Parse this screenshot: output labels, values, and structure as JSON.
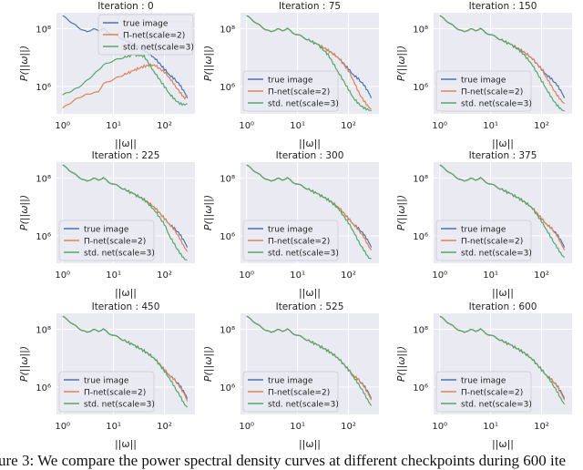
{
  "colors": {
    "true": "#4C72B0",
    "pinet": "#DD8452",
    "std": "#55A868",
    "axes_bg": "#EAEAF2",
    "grid": "#FFFFFF"
  },
  "caption": "ure 3: We compare the power spectral density curves at different checkpoints during 600 ite",
  "chart_data": {
    "type": "line",
    "layout": "3x3 grid",
    "xscale": "log",
    "yscale": "log",
    "xlabel": "||ω||",
    "ylabel": "P(||ω||)",
    "xlim_log10": [
      -0.12,
      2.6
    ],
    "ylim_log10": [
      5.05,
      8.55
    ],
    "x_ticks": [
      {
        "value": 1,
        "label": "10⁰"
      },
      {
        "value": 10,
        "label": "10¹"
      },
      {
        "value": 100,
        "label": "10²"
      }
    ],
    "y_ticks": [
      {
        "value": 1000000,
        "label": "10⁶"
      },
      {
        "value": 100000000,
        "label": "10⁸"
      }
    ],
    "grid": true,
    "legend_labels": [
      "true image",
      "Π-net(scale=2)",
      "std. net(scale=3)"
    ],
    "x": [
      1,
      2,
      3,
      4,
      5,
      6.3,
      7.9,
      10,
      15.8,
      25,
      40,
      63,
      100,
      126,
      158,
      200,
      251,
      282
    ],
    "panels": [
      {
        "title": "Iteration : 0",
        "legend": "upper-right",
        "true_log10": [
          8.45,
          8.05,
          7.88,
          8.0,
          7.92,
          8.02,
          7.85,
          7.8,
          7.62,
          7.45,
          7.25,
          7.0,
          6.6,
          6.4,
          6.25,
          6.05,
          5.8,
          5.6
        ],
        "pinet_log10": [
          5.25,
          5.6,
          5.72,
          5.78,
          5.8,
          6.1,
          6.15,
          6.25,
          6.4,
          6.55,
          6.7,
          6.75,
          6.5,
          6.3,
          6.05,
          5.8,
          5.6,
          5.7
        ],
        "std_log10": [
          5.7,
          5.95,
          6.2,
          6.4,
          6.55,
          6.75,
          6.8,
          6.9,
          7.0,
          7.1,
          7.05,
          6.5,
          6.0,
          5.75,
          5.55,
          5.4,
          5.38,
          5.4
        ]
      },
      {
        "title": "Iteration : 75",
        "legend": "lower-left",
        "true_log10": [
          8.45,
          8.05,
          7.88,
          8.0,
          7.92,
          8.02,
          7.85,
          7.8,
          7.62,
          7.45,
          7.25,
          7.0,
          6.6,
          6.4,
          6.25,
          6.05,
          5.8,
          5.6
        ],
        "pinet_log10": [
          8.45,
          8.05,
          7.88,
          8.0,
          7.92,
          8.02,
          7.85,
          7.8,
          7.62,
          7.45,
          7.25,
          7.0,
          6.55,
          6.2,
          5.8,
          5.5,
          5.3,
          5.2
        ],
        "std_log10": [
          8.45,
          8.05,
          7.88,
          8.0,
          7.92,
          8.02,
          7.85,
          7.8,
          7.62,
          7.45,
          7.1,
          6.5,
          5.9,
          5.6,
          5.4,
          5.25,
          5.2,
          5.15
        ]
      },
      {
        "title": "Iteration : 150",
        "legend": "lower-left",
        "true_log10": [
          8.45,
          8.05,
          7.88,
          8.0,
          7.92,
          8.02,
          7.85,
          7.8,
          7.62,
          7.45,
          7.25,
          7.0,
          6.6,
          6.4,
          6.25,
          6.05,
          5.8,
          5.6
        ],
        "pinet_log10": [
          8.45,
          8.05,
          7.88,
          8.0,
          7.92,
          8.02,
          7.85,
          7.8,
          7.62,
          7.45,
          7.25,
          7.0,
          6.6,
          6.3,
          6.0,
          5.7,
          5.5,
          5.4
        ],
        "std_log10": [
          8.45,
          8.05,
          7.88,
          8.0,
          7.92,
          8.02,
          7.85,
          7.8,
          7.62,
          7.45,
          7.2,
          6.8,
          6.2,
          5.9,
          5.6,
          5.35,
          5.2,
          5.15
        ]
      },
      {
        "title": "Iteration : 225",
        "legend": "lower-left",
        "true_log10": [
          8.45,
          8.05,
          7.88,
          8.0,
          7.92,
          8.02,
          7.85,
          7.8,
          7.62,
          7.45,
          7.25,
          7.0,
          6.6,
          6.4,
          6.25,
          6.05,
          5.8,
          5.6
        ],
        "pinet_log10": [
          8.45,
          8.05,
          7.88,
          8.0,
          7.92,
          8.02,
          7.85,
          7.8,
          7.62,
          7.45,
          7.25,
          7.0,
          6.6,
          6.4,
          6.2,
          5.9,
          5.6,
          5.45
        ],
        "std_log10": [
          8.45,
          8.05,
          7.88,
          8.0,
          7.92,
          8.02,
          7.85,
          7.8,
          7.62,
          7.45,
          7.25,
          6.9,
          6.4,
          6.0,
          5.7,
          5.4,
          5.2,
          5.15
        ]
      },
      {
        "title": "Iteration : 300",
        "legend": "lower-left",
        "true_log10": [
          8.45,
          8.05,
          7.88,
          8.0,
          7.92,
          8.02,
          7.85,
          7.8,
          7.62,
          7.45,
          7.25,
          7.0,
          6.6,
          6.4,
          6.25,
          6.05,
          5.8,
          5.6
        ],
        "pinet_log10": [
          8.45,
          8.05,
          7.88,
          8.0,
          7.92,
          8.02,
          7.85,
          7.8,
          7.62,
          7.45,
          7.25,
          7.0,
          6.6,
          6.4,
          6.2,
          5.95,
          5.65,
          5.5
        ],
        "std_log10": [
          8.45,
          8.05,
          7.88,
          8.0,
          7.92,
          8.02,
          7.85,
          7.8,
          7.62,
          7.45,
          7.25,
          6.95,
          6.45,
          6.15,
          5.8,
          5.5,
          5.25,
          5.2
        ]
      },
      {
        "title": "Iteration : 375",
        "legend": "lower-left",
        "true_log10": [
          8.45,
          8.05,
          7.88,
          8.0,
          7.92,
          8.02,
          7.85,
          7.8,
          7.62,
          7.45,
          7.25,
          7.0,
          6.6,
          6.4,
          6.25,
          6.05,
          5.8,
          5.6
        ],
        "pinet_log10": [
          8.45,
          8.05,
          7.88,
          8.0,
          7.92,
          8.02,
          7.85,
          7.8,
          7.62,
          7.45,
          7.25,
          7.0,
          6.6,
          6.4,
          6.25,
          6.0,
          5.7,
          5.5
        ],
        "std_log10": [
          8.45,
          8.05,
          7.88,
          8.0,
          7.92,
          8.02,
          7.85,
          7.8,
          7.62,
          7.45,
          7.25,
          7.0,
          6.5,
          6.2,
          5.9,
          5.6,
          5.35,
          5.25
        ]
      },
      {
        "title": "Iteration : 450",
        "legend": "lower-left",
        "true_log10": [
          8.45,
          8.05,
          7.88,
          8.0,
          7.92,
          8.02,
          7.85,
          7.8,
          7.62,
          7.45,
          7.25,
          7.0,
          6.6,
          6.4,
          6.25,
          6.05,
          5.8,
          5.6
        ],
        "pinet_log10": [
          8.45,
          8.05,
          7.88,
          8.0,
          7.92,
          8.02,
          7.85,
          7.8,
          7.62,
          7.45,
          7.25,
          7.0,
          6.6,
          6.4,
          6.25,
          6.0,
          5.75,
          5.5
        ],
        "std_log10": [
          8.45,
          8.05,
          7.88,
          8.0,
          7.92,
          8.02,
          7.85,
          7.8,
          7.62,
          7.45,
          7.25,
          7.0,
          6.55,
          6.3,
          6.0,
          5.7,
          5.4,
          5.3
        ]
      },
      {
        "title": "Iteration : 525",
        "legend": "lower-left",
        "true_log10": [
          8.45,
          8.05,
          7.88,
          8.0,
          7.92,
          8.02,
          7.85,
          7.8,
          7.62,
          7.45,
          7.25,
          7.0,
          6.6,
          6.4,
          6.25,
          6.05,
          5.8,
          5.6
        ],
        "pinet_log10": [
          8.45,
          8.05,
          7.88,
          8.0,
          7.92,
          8.02,
          7.85,
          7.8,
          7.62,
          7.45,
          7.25,
          7.0,
          6.6,
          6.4,
          6.25,
          6.02,
          5.75,
          5.55
        ],
        "std_log10": [
          8.45,
          8.05,
          7.88,
          8.0,
          7.92,
          8.02,
          7.85,
          7.8,
          7.62,
          7.45,
          7.25,
          7.0,
          6.6,
          6.35,
          6.1,
          5.8,
          5.5,
          5.35
        ]
      },
      {
        "title": "Iteration : 600",
        "legend": "lower-left",
        "true_log10": [
          8.45,
          8.05,
          7.88,
          8.0,
          7.92,
          8.02,
          7.85,
          7.8,
          7.62,
          7.45,
          7.25,
          7.0,
          6.6,
          6.4,
          6.25,
          6.05,
          5.8,
          5.6
        ],
        "pinet_log10": [
          8.45,
          8.05,
          7.88,
          8.0,
          7.92,
          8.02,
          7.85,
          7.8,
          7.62,
          7.45,
          7.25,
          7.0,
          6.6,
          6.4,
          6.25,
          6.03,
          5.75,
          5.55
        ],
        "std_log10": [
          8.45,
          8.05,
          7.88,
          8.0,
          7.92,
          8.02,
          7.85,
          7.8,
          7.62,
          7.45,
          7.25,
          7.0,
          6.6,
          6.4,
          6.15,
          5.85,
          5.55,
          5.4
        ]
      }
    ]
  }
}
